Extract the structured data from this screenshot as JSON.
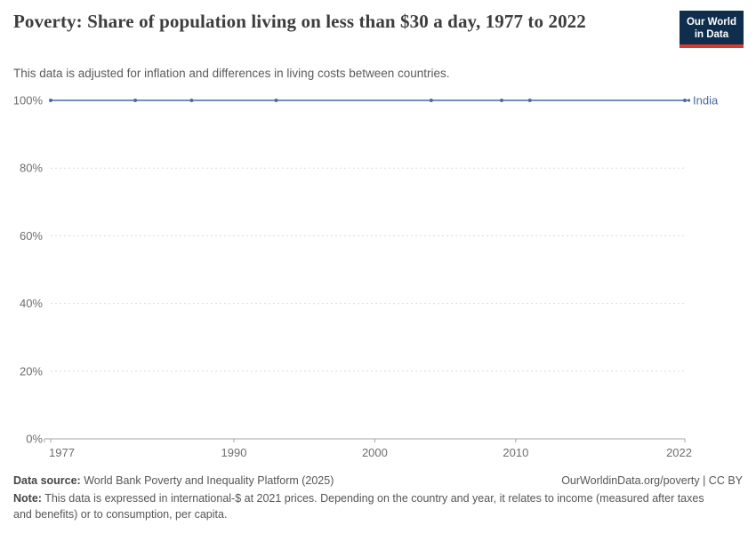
{
  "header": {
    "title": "Poverty: Share of population living on less than $30 a day, 1977 to 2022",
    "subtitle": "This data is adjusted for inflation and differences in living costs between countries.",
    "logo": {
      "line1": "Our World",
      "line2": "in Data",
      "bg_color": "#0f2e4d",
      "bar_color": "#d93a2d"
    }
  },
  "chart_data": {
    "type": "line",
    "title": "Poverty: Share of population living on less than $30 a day, 1977 to 2022",
    "xlabel": "",
    "ylabel": "",
    "x": [
      1977,
      1983,
      1987,
      1993,
      2004,
      2009,
      2011,
      2022
    ],
    "series": [
      {
        "name": "India",
        "color": "#4c6a9c",
        "values": [
          100,
          100,
          100,
          100,
          100,
          100,
          100,
          100
        ]
      }
    ],
    "xlim": [
      1977,
      2022
    ],
    "ylim": [
      0,
      100
    ],
    "x_ticks": [
      1977,
      1990,
      2000,
      2010,
      2022
    ],
    "y_ticks": [
      0,
      20,
      40,
      60,
      80,
      100
    ],
    "y_tick_suffix": "%",
    "grid": "horizontal dashed",
    "grid_color": "#dcdcdc",
    "axis_color": "#a3a3a3",
    "tick_label_color": "#6e6e6e",
    "legend_position": "line-end label"
  },
  "footer": {
    "source_label": "Data source:",
    "source_text": "World Bank Poverty and Inequality Platform (2025)",
    "rights_text": "OurWorldinData.org/poverty | CC BY",
    "note_label": "Note:",
    "note_text": "This data is expressed in international-$ at 2021 prices. Depending on the country and year, it relates to income (measured after taxes and benefits) or to consumption, per capita."
  }
}
